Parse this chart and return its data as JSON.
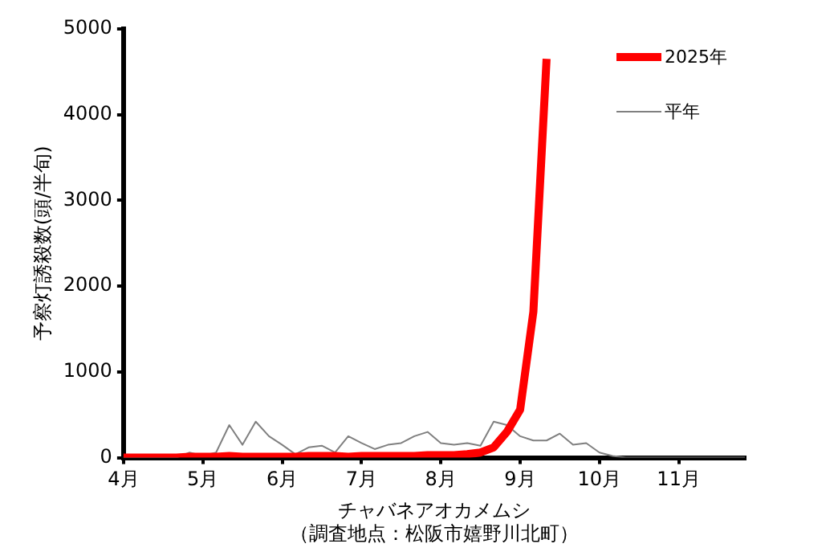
{
  "chart_data": {
    "type": "line",
    "xlabel": "チャバネアオカメムシ",
    "ylabel": "予察灯誘殺数(頭/半旬)",
    "annotations": [
      "（調査地点：松阪市嬉野川北町）"
    ],
    "categories": [
      "4月",
      null,
      null,
      null,
      null,
      null,
      "5月",
      null,
      null,
      null,
      null,
      null,
      "6月",
      null,
      null,
      null,
      null,
      null,
      "7月",
      null,
      null,
      null,
      null,
      null,
      "8月",
      null,
      null,
      null,
      null,
      null,
      "9月",
      null,
      null,
      null,
      null,
      null,
      "10月",
      null,
      null,
      null,
      null,
      null,
      "11月",
      null,
      null,
      null,
      null,
      null
    ],
    "series": [
      {
        "name": "2025年",
        "color": "#ff0000",
        "values": [
          0,
          0,
          0,
          0,
          0,
          10,
          10,
          10,
          20,
          10,
          10,
          10,
          10,
          10,
          20,
          20,
          20,
          10,
          20,
          20,
          20,
          20,
          20,
          30,
          30,
          30,
          40,
          60,
          120,
          300,
          560,
          1700,
          4650,
          null,
          null,
          null,
          null,
          null,
          null,
          null,
          null,
          null,
          null,
          null,
          null,
          null,
          null,
          null
        ]
      },
      {
        "name": "平年",
        "color": "#808080",
        "values": [
          0,
          0,
          0,
          0,
          0,
          60,
          20,
          60,
          380,
          150,
          420,
          250,
          150,
          40,
          120,
          140,
          60,
          250,
          170,
          100,
          150,
          170,
          250,
          300,
          170,
          150,
          170,
          140,
          420,
          380,
          250,
          200,
          200,
          280,
          150,
          170,
          60,
          20,
          0,
          0,
          0,
          0,
          0,
          0,
          0,
          0,
          0,
          0
        ]
      }
    ],
    "ylim": [
      0,
      5000
    ],
    "yticks": [
      0,
      1000,
      2000,
      3000,
      4000,
      5000
    ],
    "grid": false,
    "legend": "top right",
    "marker": "none"
  }
}
